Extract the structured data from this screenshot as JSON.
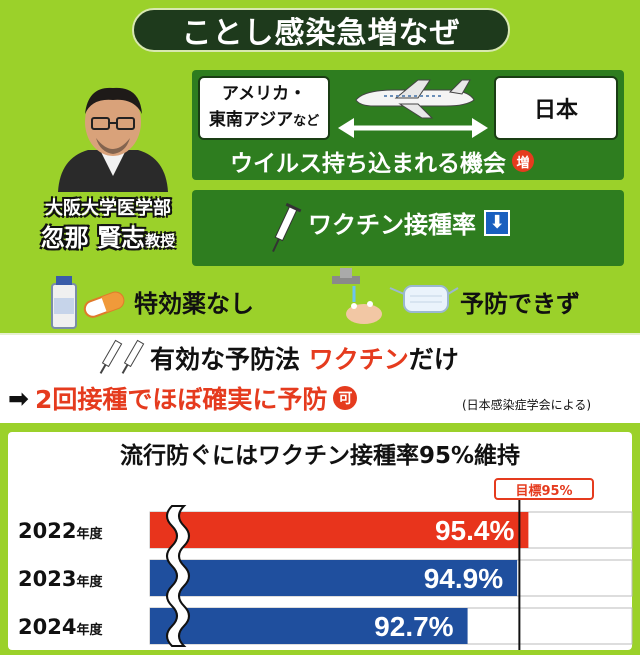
{
  "title": "ことし感染急増なぜ",
  "professor": {
    "affiliation": "大阪大学医学部",
    "name": "忽那 賢志",
    "rank": "教授"
  },
  "virus_panel": {
    "source_line1": "アメリカ・",
    "source_line2": "東南アジア",
    "source_suffix": "など",
    "destination": "日本",
    "caption": "ウイルス持ち込まれる機会",
    "badge": "増"
  },
  "vaccine_panel": {
    "caption": "ワクチン接種率",
    "arrow": "⬇"
  },
  "no_drug": "特効薬なし",
  "no_prevention": "予防できず",
  "only_method_prefix": "有効な予防法 ",
  "only_method_highlight": "ワクチン",
  "only_method_suffix": "だけ",
  "two_dose_arrow": "➡",
  "two_dose": "2回接種でほぼ確実に予防",
  "two_dose_badge": "可",
  "source": "(日本感染症学会による)",
  "chart_data": {
    "type": "bar",
    "title": "流行防ぐにはワクチン接種率95%維持",
    "target_label": "目標95%",
    "target": 95,
    "categories": [
      "2022",
      "2023",
      "2024"
    ],
    "category_suffix": "年度",
    "values": [
      95.4,
      94.9,
      92.7
    ],
    "value_labels": [
      "95.4%",
      "94.9%",
      "92.7%"
    ],
    "colors": [
      "#e8341c",
      "#1f4f9e",
      "#1f4f9e"
    ]
  }
}
